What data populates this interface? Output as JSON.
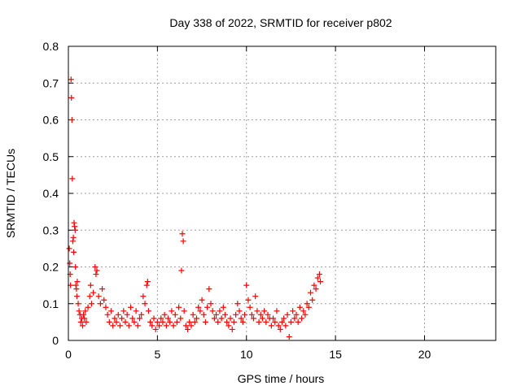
{
  "chart_data": {
    "type": "scatter",
    "title": "Day 338 of 2022, SRMTID for receiver p802",
    "xlabel": "GPS time / hours",
    "ylabel": "SRMTID / TECUs",
    "xlim": [
      0,
      24
    ],
    "ylim": [
      0,
      0.8
    ],
    "xticks": [
      0,
      5,
      10,
      15,
      20
    ],
    "yticks": [
      0,
      0.1,
      0.2,
      0.3,
      0.4,
      0.5,
      0.6,
      0.7,
      0.8
    ],
    "xtick_labels": [
      "0",
      "5",
      "10",
      "15",
      "20"
    ],
    "ytick_labels": [
      "0",
      "0.1",
      "0.2",
      "0.3",
      "0.4",
      "0.5",
      "0.6",
      "0.7",
      "0.8"
    ],
    "grid": true,
    "marker": "plus",
    "color": "#ff0000",
    "series": [
      {
        "points": [
          [
            0.05,
            0.25
          ],
          [
            0.08,
            0.21
          ],
          [
            0.1,
            0.18
          ],
          [
            0.12,
            0.15
          ],
          [
            0.15,
            0.71
          ],
          [
            0.17,
            0.66
          ],
          [
            0.2,
            0.6
          ],
          [
            0.22,
            0.44
          ],
          [
            0.25,
            0.27
          ],
          [
            0.28,
            0.28
          ],
          [
            0.3,
            0.24
          ],
          [
            0.32,
            0.32
          ],
          [
            0.35,
            0.31
          ],
          [
            0.38,
            0.3
          ],
          [
            0.4,
            0.2
          ],
          [
            0.42,
            0.15
          ],
          [
            0.45,
            0.14
          ],
          [
            0.48,
            0.12
          ],
          [
            0.5,
            0.16
          ],
          [
            0.55,
            0.1
          ],
          [
            0.6,
            0.08
          ],
          [
            0.65,
            0.07
          ],
          [
            0.7,
            0.05
          ],
          [
            0.75,
            0.06
          ],
          [
            0.8,
            0.04
          ],
          [
            0.85,
            0.07
          ],
          [
            0.9,
            0.06
          ],
          [
            0.95,
            0.08
          ],
          [
            1.0,
            0.05
          ],
          [
            1.1,
            0.09
          ],
          [
            1.2,
            0.12
          ],
          [
            1.25,
            0.15
          ],
          [
            1.3,
            0.1
          ],
          [
            1.4,
            0.13
          ],
          [
            1.5,
            0.2
          ],
          [
            1.55,
            0.18
          ],
          [
            1.6,
            0.19
          ],
          [
            1.7,
            0.12
          ],
          [
            1.8,
            0.1
          ],
          [
            1.9,
            0.14
          ],
          [
            2.0,
            0.11
          ],
          [
            2.1,
            0.09
          ],
          [
            2.2,
            0.07
          ],
          [
            2.3,
            0.05
          ],
          [
            2.4,
            0.08
          ],
          [
            2.5,
            0.04
          ],
          [
            2.6,
            0.06
          ],
          [
            2.7,
            0.05
          ],
          [
            2.8,
            0.07
          ],
          [
            2.9,
            0.04
          ],
          [
            3.0,
            0.06
          ],
          [
            3.1,
            0.08
          ],
          [
            3.2,
            0.05
          ],
          [
            3.3,
            0.07
          ],
          [
            3.4,
            0.04
          ],
          [
            3.5,
            0.09
          ],
          [
            3.6,
            0.06
          ],
          [
            3.7,
            0.05
          ],
          [
            3.8,
            0.08
          ],
          [
            3.9,
            0.04
          ],
          [
            4.0,
            0.06
          ],
          [
            4.1,
            0.07
          ],
          [
            4.2,
            0.12
          ],
          [
            4.3,
            0.1
          ],
          [
            4.4,
            0.15
          ],
          [
            4.45,
            0.16
          ],
          [
            4.5,
            0.08
          ],
          [
            4.6,
            0.05
          ],
          [
            4.7,
            0.04
          ],
          [
            4.8,
            0.06
          ],
          [
            4.9,
            0.03
          ],
          [
            5.0,
            0.05
          ],
          [
            5.1,
            0.04
          ],
          [
            5.2,
            0.06
          ],
          [
            5.3,
            0.05
          ],
          [
            5.4,
            0.07
          ],
          [
            5.5,
            0.04
          ],
          [
            5.6,
            0.06
          ],
          [
            5.7,
            0.05
          ],
          [
            5.8,
            0.08
          ],
          [
            5.9,
            0.04
          ],
          [
            6.0,
            0.07
          ],
          [
            6.1,
            0.05
          ],
          [
            6.2,
            0.09
          ],
          [
            6.3,
            0.06
          ],
          [
            6.35,
            0.19
          ],
          [
            6.4,
            0.29
          ],
          [
            6.45,
            0.27
          ],
          [
            6.5,
            0.08
          ],
          [
            6.6,
            0.04
          ],
          [
            6.7,
            0.03
          ],
          [
            6.8,
            0.05
          ],
          [
            6.9,
            0.04
          ],
          [
            7.0,
            0.07
          ],
          [
            7.1,
            0.05
          ],
          [
            7.2,
            0.06
          ],
          [
            7.3,
            0.09
          ],
          [
            7.4,
            0.08
          ],
          [
            7.5,
            0.11
          ],
          [
            7.6,
            0.07
          ],
          [
            7.7,
            0.05
          ],
          [
            7.8,
            0.09
          ],
          [
            7.9,
            0.14
          ],
          [
            8.0,
            0.1
          ],
          [
            8.1,
            0.08
          ],
          [
            8.2,
            0.06
          ],
          [
            8.3,
            0.07
          ],
          [
            8.4,
            0.05
          ],
          [
            8.5,
            0.08
          ],
          [
            8.6,
            0.06
          ],
          [
            8.7,
            0.09
          ],
          [
            8.8,
            0.07
          ],
          [
            8.9,
            0.05
          ],
          [
            9.0,
            0.04
          ],
          [
            9.1,
            0.06
          ],
          [
            9.2,
            0.03
          ],
          [
            9.3,
            0.05
          ],
          [
            9.4,
            0.07
          ],
          [
            9.5,
            0.1
          ],
          [
            9.6,
            0.08
          ],
          [
            9.7,
            0.06
          ],
          [
            9.8,
            0.05
          ],
          [
            9.9,
            0.07
          ],
          [
            10.0,
            0.15
          ],
          [
            10.1,
            0.11
          ],
          [
            10.2,
            0.09
          ],
          [
            10.3,
            0.07
          ],
          [
            10.4,
            0.06
          ],
          [
            10.5,
            0.12
          ],
          [
            10.6,
            0.08
          ],
          [
            10.7,
            0.05
          ],
          [
            10.8,
            0.07
          ],
          [
            10.9,
            0.06
          ],
          [
            11.0,
            0.08
          ],
          [
            11.1,
            0.05
          ],
          [
            11.2,
            0.07
          ],
          [
            11.3,
            0.06
          ],
          [
            11.4,
            0.04
          ],
          [
            11.5,
            0.06
          ],
          [
            11.6,
            0.05
          ],
          [
            11.7,
            0.08
          ],
          [
            11.8,
            0.04
          ],
          [
            11.9,
            0.03
          ],
          [
            12.0,
            0.05
          ],
          [
            12.1,
            0.06
          ],
          [
            12.2,
            0.04
          ],
          [
            12.3,
            0.07
          ],
          [
            12.4,
            0.01
          ],
          [
            12.5,
            0.05
          ],
          [
            12.6,
            0.08
          ],
          [
            12.7,
            0.06
          ],
          [
            12.8,
            0.07
          ],
          [
            12.9,
            0.05
          ],
          [
            13.0,
            0.09
          ],
          [
            13.1,
            0.06
          ],
          [
            13.2,
            0.08
          ],
          [
            13.3,
            0.07
          ],
          [
            13.4,
            0.1
          ],
          [
            13.5,
            0.09
          ],
          [
            13.6,
            0.13
          ],
          [
            13.7,
            0.11
          ],
          [
            13.8,
            0.15
          ],
          [
            13.9,
            0.14
          ],
          [
            14.0,
            0.17
          ],
          [
            14.1,
            0.18
          ],
          [
            14.15,
            0.16
          ]
        ]
      }
    ]
  }
}
